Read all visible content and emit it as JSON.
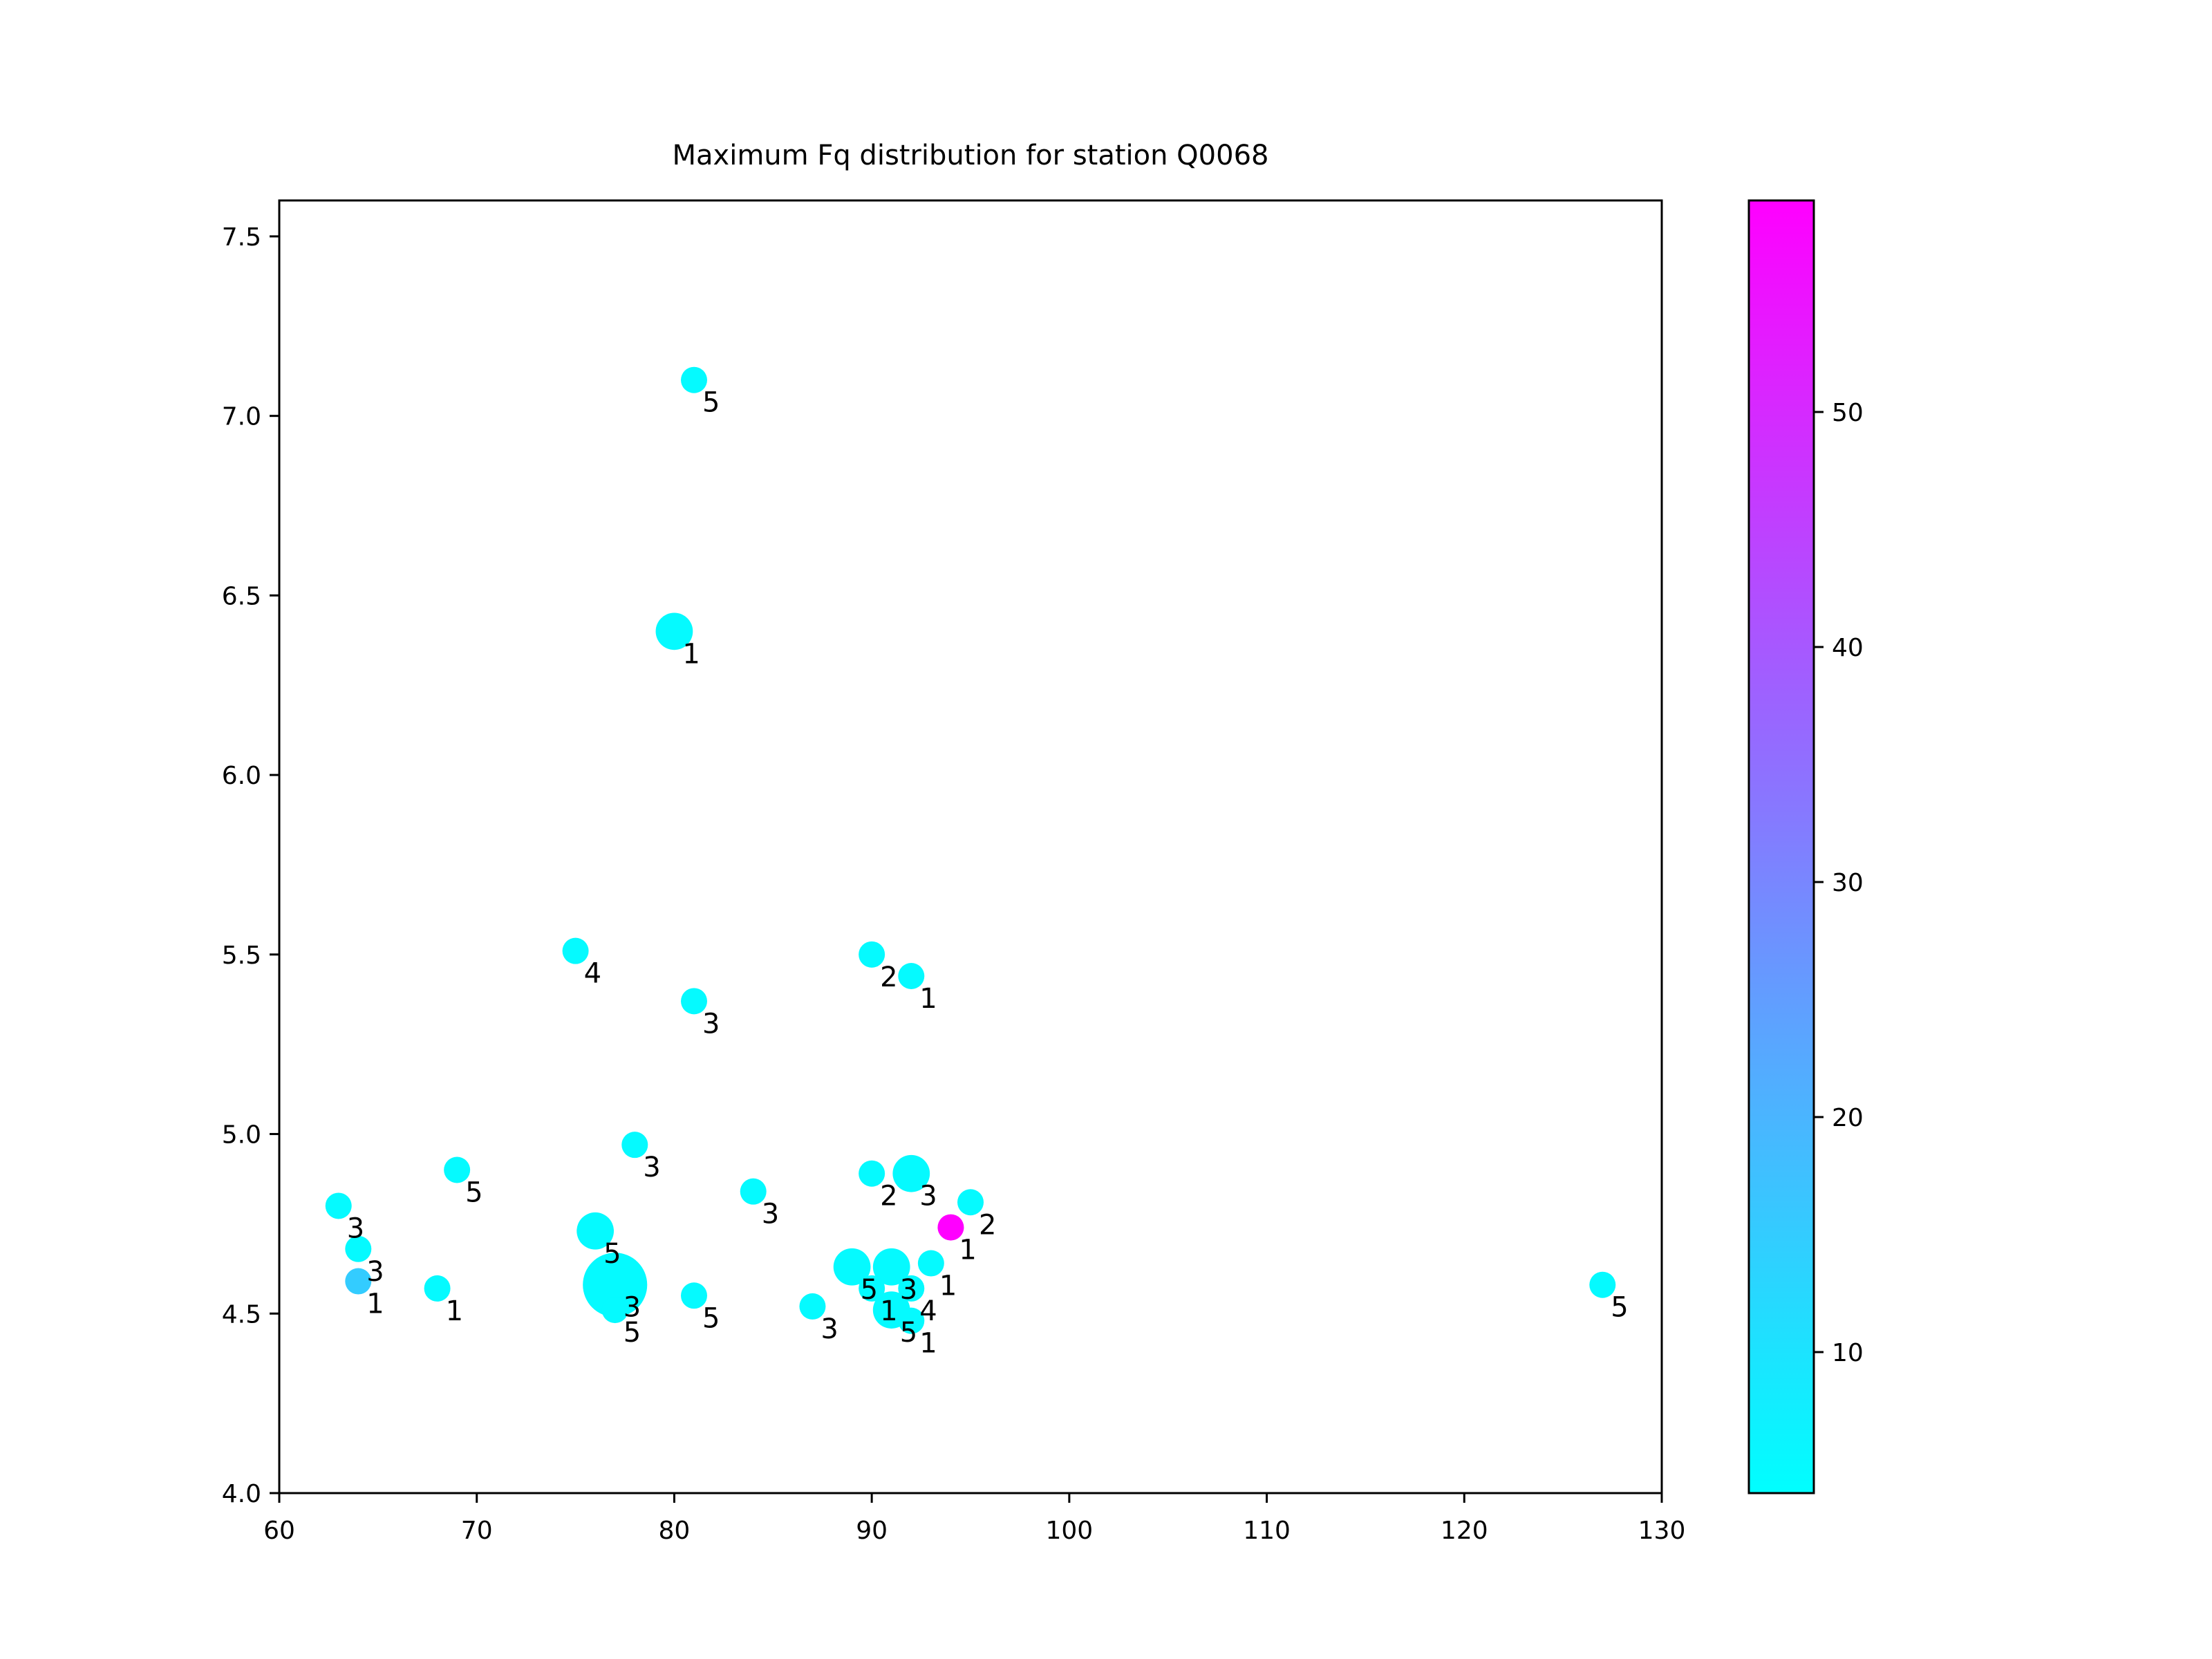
{
  "chart_data": {
    "type": "scatter",
    "title": "Maximum Fq distribution for station Q0068",
    "xlabel": "",
    "ylabel": "",
    "xlim": [
      60,
      130
    ],
    "ylim": [
      4.0,
      7.6
    ],
    "xticks": [
      "60",
      "70",
      "80",
      "90",
      "100",
      "110",
      "120",
      "130"
    ],
    "yticks": [
      "4.0",
      "4.5",
      "5.0",
      "5.5",
      "6.0",
      "6.5",
      "7.0",
      "7.5"
    ],
    "colorbar": {
      "colormap": "cool",
      "range": [
        4,
        59
      ],
      "ticks": [
        "10",
        "20",
        "30",
        "40",
        "50"
      ],
      "low_color": "#00ffff",
      "high_color": "#ff00ff"
    },
    "grid": false,
    "points": [
      {
        "x": 81,
        "y": 7.1,
        "label": "5",
        "c": 5,
        "size": 1
      },
      {
        "x": 80,
        "y": 6.4,
        "label": "1",
        "c": 5,
        "size": 2
      },
      {
        "x": 75,
        "y": 5.51,
        "label": "4",
        "c": 5,
        "size": 1
      },
      {
        "x": 90,
        "y": 5.5,
        "label": "2",
        "c": 5,
        "size": 1
      },
      {
        "x": 92,
        "y": 5.44,
        "label": "1",
        "c": 5,
        "size": 1
      },
      {
        "x": 81,
        "y": 5.37,
        "label": "3",
        "c": 5,
        "size": 1
      },
      {
        "x": 78,
        "y": 4.97,
        "label": "3",
        "c": 5,
        "size": 1
      },
      {
        "x": 69,
        "y": 4.9,
        "label": "5",
        "c": 5,
        "size": 1
      },
      {
        "x": 90,
        "y": 4.89,
        "label": "2",
        "c": 5,
        "size": 1
      },
      {
        "x": 92,
        "y": 4.89,
        "label": "3",
        "c": 5,
        "size": 2
      },
      {
        "x": 84,
        "y": 4.84,
        "label": "3",
        "c": 5,
        "size": 1
      },
      {
        "x": 95,
        "y": 4.81,
        "label": "2",
        "c": 5,
        "size": 1
      },
      {
        "x": 63,
        "y": 4.8,
        "label": "3",
        "c": 5,
        "size": 1
      },
      {
        "x": 94,
        "y": 4.74,
        "label": "1",
        "c": 59,
        "size": 1
      },
      {
        "x": 76,
        "y": 4.73,
        "label": "5",
        "c": 5,
        "size": 2
      },
      {
        "x": 64,
        "y": 4.68,
        "label": "3",
        "c": 5,
        "size": 1
      },
      {
        "x": 93,
        "y": 4.64,
        "label": "1",
        "c": 5,
        "size": 1
      },
      {
        "x": 89,
        "y": 4.63,
        "label": "5",
        "c": 5,
        "size": 2
      },
      {
        "x": 91,
        "y": 4.63,
        "label": "3",
        "c": 5,
        "size": 2
      },
      {
        "x": 64,
        "y": 4.59,
        "label": "1",
        "c": 15,
        "size": 1
      },
      {
        "x": 77,
        "y": 4.58,
        "label": "3",
        "c": 5,
        "size": 6
      },
      {
        "x": 127,
        "y": 4.58,
        "label": "5",
        "c": 5,
        "size": 1
      },
      {
        "x": 68,
        "y": 4.57,
        "label": "1",
        "c": 5,
        "size": 1
      },
      {
        "x": 90,
        "y": 4.57,
        "label": "1",
        "c": 5,
        "size": 1
      },
      {
        "x": 92,
        "y": 4.57,
        "label": "4",
        "c": 5,
        "size": 1
      },
      {
        "x": 81,
        "y": 4.55,
        "label": "5",
        "c": 5,
        "size": 1
      },
      {
        "x": 87,
        "y": 4.52,
        "label": "3",
        "c": 5,
        "size": 1
      },
      {
        "x": 91,
        "y": 4.51,
        "label": "5",
        "c": 5,
        "size": 2
      },
      {
        "x": 92,
        "y": 4.48,
        "label": "1",
        "c": 5,
        "size": 1
      },
      {
        "x": 77,
        "y": 4.51,
        "label": "5",
        "c": 5,
        "size": 1
      }
    ]
  }
}
